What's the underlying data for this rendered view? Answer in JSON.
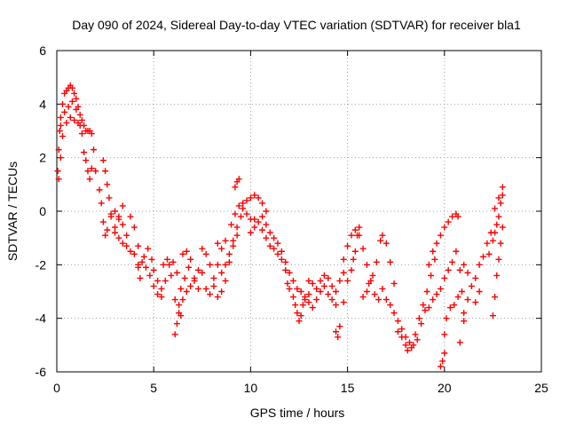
{
  "chart_data": {
    "type": "scatter",
    "title": "Day 090 of 2024, Sidereal Day-to-day VTEC variation (SDTVAR) for receiver bla1",
    "xlabel": "GPS time / hours",
    "ylabel": "SDTVAR / TECUs",
    "xlim": [
      0,
      25
    ],
    "ylim": [
      -6,
      6
    ],
    "xticks": [
      0,
      5,
      10,
      15,
      20,
      25
    ],
    "yticks": [
      -6,
      -4,
      -2,
      0,
      2,
      4,
      6
    ],
    "xtick_labels": [
      "0",
      "5",
      "10",
      "15",
      "20",
      "25"
    ],
    "ytick_labels": [
      "-6",
      "-4",
      "-2",
      "0",
      "2",
      "4",
      "6"
    ],
    "grid": true,
    "marker": "+",
    "series": [
      {
        "name": "bla1 SDTVAR",
        "color": "#ff0000",
        "points": [
          [
            0.05,
            1.5
          ],
          [
            0.1,
            2.3
          ],
          [
            0.15,
            3.0
          ],
          [
            0.2,
            3.5
          ],
          [
            0.3,
            4.0
          ],
          [
            0.4,
            4.4
          ],
          [
            0.5,
            4.5
          ],
          [
            0.6,
            4.6
          ],
          [
            0.7,
            4.7
          ],
          [
            0.8,
            4.6
          ],
          [
            0.9,
            4.4
          ],
          [
            1.0,
            4.2
          ],
          [
            1.1,
            3.9
          ],
          [
            1.2,
            3.6
          ],
          [
            1.3,
            3.4
          ],
          [
            1.4,
            3.2
          ],
          [
            1.5,
            3.0
          ],
          [
            1.6,
            3.0
          ],
          [
            1.7,
            3.0
          ],
          [
            1.8,
            2.9
          ],
          [
            0.1,
            1.2
          ],
          [
            0.2,
            2.0
          ],
          [
            0.3,
            2.8
          ],
          [
            0.5,
            3.3
          ],
          [
            0.7,
            3.5
          ],
          [
            0.9,
            3.4
          ],
          [
            1.1,
            3.3
          ],
          [
            1.3,
            2.9
          ],
          [
            1.5,
            1.9
          ],
          [
            1.7,
            1.2
          ],
          [
            0.2,
            3.2
          ],
          [
            0.4,
            3.7
          ],
          [
            0.6,
            3.9
          ],
          [
            0.8,
            4.1
          ],
          [
            1.0,
            3.8
          ],
          [
            1.2,
            3.2
          ],
          [
            1.4,
            2.2
          ],
          [
            1.6,
            1.5
          ],
          [
            1.8,
            1.6
          ],
          [
            1.9,
            2.3
          ],
          [
            2.0,
            1.5
          ],
          [
            2.2,
            0.8
          ],
          [
            2.3,
            0.3
          ],
          [
            2.4,
            -0.4
          ],
          [
            2.5,
            -0.9
          ],
          [
            2.6,
            -0.7
          ],
          [
            2.8,
            -0.2
          ],
          [
            3.0,
            0.0
          ],
          [
            3.2,
            -0.2
          ],
          [
            3.4,
            0.2
          ],
          [
            2.4,
            1.9
          ],
          [
            2.5,
            1.5
          ],
          [
            2.6,
            1.0
          ],
          [
            2.7,
            0.5
          ],
          [
            2.8,
            -0.1
          ],
          [
            3.0,
            -0.6
          ],
          [
            3.2,
            -1.0
          ],
          [
            3.4,
            -1.2
          ],
          [
            3.6,
            -1.3
          ],
          [
            3.8,
            -1.5
          ],
          [
            4.0,
            -1.6
          ],
          [
            4.2,
            -2.0
          ],
          [
            4.3,
            -2.5
          ],
          [
            4.2,
            -2.1
          ],
          [
            4.5,
            -1.7
          ],
          [
            4.7,
            -1.4
          ],
          [
            4.9,
            -1.8
          ],
          [
            5.0,
            -2.2
          ],
          [
            5.2,
            -2.6
          ],
          [
            5.4,
            -2.9
          ],
          [
            3.0,
            -0.8
          ],
          [
            3.2,
            -0.3
          ],
          [
            3.4,
            -0.5
          ],
          [
            3.6,
            -0.9
          ],
          [
            3.8,
            -0.2
          ],
          [
            4.0,
            -0.6
          ],
          [
            4.2,
            -1.3
          ],
          [
            4.4,
            -1.9
          ],
          [
            4.6,
            -2.1
          ],
          [
            4.8,
            -2.4
          ],
          [
            5.0,
            -2.8
          ],
          [
            5.2,
            -3.1
          ],
          [
            5.4,
            -3.2
          ],
          [
            5.6,
            -2.6
          ],
          [
            5.8,
            -2.0
          ],
          [
            6.0,
            -1.9
          ],
          [
            6.2,
            -2.3
          ],
          [
            6.4,
            -2.9
          ],
          [
            6.6,
            -2.5
          ],
          [
            6.8,
            -2.1
          ],
          [
            5.5,
            -2.0
          ],
          [
            5.7,
            -1.8
          ],
          [
            5.9,
            -2.4
          ],
          [
            6.1,
            -3.3
          ],
          [
            6.3,
            -3.5
          ],
          [
            6.5,
            -3.3
          ],
          [
            6.7,
            -3.0
          ],
          [
            6.9,
            -2.8
          ],
          [
            7.1,
            -2.5
          ],
          [
            7.3,
            -2.2
          ],
          [
            6.1,
            -4.6
          ],
          [
            6.2,
            -4.2
          ],
          [
            6.3,
            -3.8
          ],
          [
            6.4,
            -3.9
          ],
          [
            6.5,
            -1.6
          ],
          [
            6.7,
            -1.5
          ],
          [
            6.9,
            -1.8
          ],
          [
            7.1,
            -2.6
          ],
          [
            7.3,
            -2.9
          ],
          [
            7.5,
            -2.3
          ],
          [
            7.5,
            -1.4
          ],
          [
            7.7,
            -1.6
          ],
          [
            7.9,
            -2.0
          ],
          [
            8.1,
            -2.8
          ],
          [
            8.3,
            -3.2
          ],
          [
            8.5,
            -3.0
          ],
          [
            8.7,
            -2.6
          ],
          [
            8.9,
            -1.9
          ],
          [
            9.1,
            -1.3
          ],
          [
            9.3,
            -0.9
          ],
          [
            7.7,
            -2.9
          ],
          [
            7.9,
            -3.1
          ],
          [
            8.1,
            -2.5
          ],
          [
            8.3,
            -2.0
          ],
          [
            8.5,
            -2.3
          ],
          [
            8.7,
            -2.0
          ],
          [
            8.9,
            -1.6
          ],
          [
            9.1,
            -1.1
          ],
          [
            9.3,
            -0.6
          ],
          [
            9.5,
            -0.2
          ],
          [
            8.3,
            -1.2
          ],
          [
            8.5,
            -1.4
          ],
          [
            8.7,
            -1.1
          ],
          [
            9.0,
            -0.5
          ],
          [
            9.2,
            -0.1
          ],
          [
            9.4,
            0.2
          ],
          [
            9.6,
            0.1
          ],
          [
            9.8,
            -0.1
          ],
          [
            10.0,
            -0.3
          ],
          [
            10.2,
            -0.3
          ],
          [
            9.2,
            0.9
          ],
          [
            9.3,
            1.1
          ],
          [
            9.4,
            1.2
          ],
          [
            9.6,
            0.3
          ],
          [
            9.8,
            0.4
          ],
          [
            10.0,
            0.5
          ],
          [
            10.2,
            0.6
          ],
          [
            10.4,
            0.5
          ],
          [
            10.6,
            0.3
          ],
          [
            10.8,
            0.0
          ],
          [
            10.0,
            -0.8
          ],
          [
            10.2,
            -0.6
          ],
          [
            10.4,
            -0.4
          ],
          [
            10.6,
            -0.7
          ],
          [
            10.8,
            -1.0
          ],
          [
            11.0,
            -1.3
          ],
          [
            11.2,
            -1.4
          ],
          [
            11.4,
            -1.6
          ],
          [
            11.6,
            -1.8
          ],
          [
            11.8,
            -2.2
          ],
          [
            10.6,
            -0.2
          ],
          [
            10.8,
            -0.5
          ],
          [
            11.0,
            -0.8
          ],
          [
            11.2,
            -1.0
          ],
          [
            11.4,
            -1.2
          ],
          [
            11.6,
            -1.5
          ],
          [
            11.8,
            -1.9
          ],
          [
            12.0,
            -2.3
          ],
          [
            12.2,
            -2.6
          ],
          [
            12.4,
            -2.9
          ],
          [
            11.9,
            -2.7
          ],
          [
            12.0,
            -2.9
          ],
          [
            12.2,
            -3.2
          ],
          [
            12.3,
            -3.5
          ],
          [
            12.4,
            -3.8
          ],
          [
            12.5,
            -4.1
          ],
          [
            12.6,
            -3.9
          ],
          [
            12.7,
            -3.5
          ],
          [
            12.8,
            -3.3
          ],
          [
            13.0,
            -3.1
          ],
          [
            12.6,
            -3.0
          ],
          [
            12.8,
            -3.2
          ],
          [
            13.0,
            -3.4
          ],
          [
            13.2,
            -3.6
          ],
          [
            13.4,
            -3.3
          ],
          [
            13.6,
            -3.0
          ],
          [
            13.8,
            -2.8
          ],
          [
            14.0,
            -3.1
          ],
          [
            14.2,
            -3.3
          ],
          [
            14.4,
            -3.5
          ],
          [
            13.0,
            -2.6
          ],
          [
            13.2,
            -2.7
          ],
          [
            13.4,
            -2.9
          ],
          [
            13.6,
            -2.6
          ],
          [
            13.8,
            -2.4
          ],
          [
            14.0,
            -2.5
          ],
          [
            14.2,
            -2.8
          ],
          [
            14.4,
            -3.0
          ],
          [
            14.6,
            -2.6
          ],
          [
            14.8,
            -2.3
          ],
          [
            14.4,
            -4.5
          ],
          [
            14.5,
            -4.7
          ],
          [
            14.6,
            -4.3
          ],
          [
            14.8,
            -3.4
          ],
          [
            15.0,
            -2.6
          ],
          [
            15.2,
            -2.2
          ],
          [
            15.3,
            -1.8
          ],
          [
            15.4,
            -1.5
          ],
          [
            15.5,
            -0.9
          ],
          [
            15.6,
            -0.6
          ],
          [
            14.8,
            -1.8
          ],
          [
            15.0,
            -1.3
          ],
          [
            15.2,
            -0.9
          ],
          [
            15.4,
            -0.7
          ],
          [
            15.6,
            -0.9
          ],
          [
            15.8,
            -1.4
          ],
          [
            16.0,
            -2.0
          ],
          [
            16.2,
            -2.6
          ],
          [
            16.4,
            -3.1
          ],
          [
            16.6,
            -3.3
          ],
          [
            15.8,
            -3.2
          ],
          [
            16.0,
            -3.0
          ],
          [
            16.1,
            -2.7
          ],
          [
            16.3,
            -2.4
          ],
          [
            16.5,
            -1.9
          ],
          [
            16.7,
            -1.1
          ],
          [
            16.8,
            -0.9
          ],
          [
            17.0,
            -1.2
          ],
          [
            17.2,
            -1.9
          ],
          [
            17.4,
            -2.7
          ],
          [
            16.8,
            -2.9
          ],
          [
            17.0,
            -3.3
          ],
          [
            17.2,
            -3.5
          ],
          [
            17.4,
            -3.8
          ],
          [
            17.6,
            -4.1
          ],
          [
            17.8,
            -4.4
          ],
          [
            18.0,
            -4.7
          ],
          [
            18.2,
            -4.9
          ],
          [
            18.4,
            -5.0
          ],
          [
            18.6,
            -4.8
          ],
          [
            17.6,
            -4.5
          ],
          [
            17.8,
            -4.7
          ],
          [
            18.0,
            -5.0
          ],
          [
            18.1,
            -5.2
          ],
          [
            18.3,
            -5.1
          ],
          [
            18.5,
            -4.6
          ],
          [
            18.7,
            -4.0
          ],
          [
            18.9,
            -3.5
          ],
          [
            19.1,
            -3.0
          ],
          [
            19.3,
            -2.4
          ],
          [
            18.8,
            -4.2
          ],
          [
            19.0,
            -3.7
          ],
          [
            19.2,
            -3.6
          ],
          [
            19.4,
            -3.3
          ],
          [
            19.6,
            -3.1
          ],
          [
            19.8,
            -2.9
          ],
          [
            20.0,
            -2.5
          ],
          [
            20.2,
            -2.2
          ],
          [
            20.4,
            -1.9
          ],
          [
            20.6,
            -1.5
          ],
          [
            19.2,
            -2.0
          ],
          [
            19.4,
            -1.5
          ],
          [
            19.6,
            -1.2
          ],
          [
            19.8,
            -0.9
          ],
          [
            20.0,
            -0.6
          ],
          [
            20.2,
            -0.4
          ],
          [
            20.4,
            -0.2
          ],
          [
            20.6,
            -0.1
          ],
          [
            20.7,
            -0.2
          ],
          [
            19.5,
            -1.8
          ],
          [
            19.8,
            -5.8
          ],
          [
            19.9,
            -5.6
          ],
          [
            20.0,
            -5.3
          ],
          [
            20.0,
            -4.6
          ],
          [
            20.1,
            -4.0
          ],
          [
            20.3,
            -3.6
          ],
          [
            20.5,
            -3.5
          ],
          [
            20.7,
            -3.2
          ],
          [
            20.9,
            -3.0
          ],
          [
            20.8,
            -4.9
          ],
          [
            20.8,
            -2.2
          ],
          [
            21.0,
            -2.0
          ],
          [
            21.2,
            -2.3
          ],
          [
            21.4,
            -2.8
          ],
          [
            21.6,
            -3.4
          ],
          [
            21.8,
            -3.0
          ],
          [
            21.0,
            -3.8
          ],
          [
            21.0,
            -4.1
          ],
          [
            21.2,
            -3.3
          ],
          [
            21.6,
            -2.5
          ],
          [
            21.8,
            -2.0
          ],
          [
            22.0,
            -1.7
          ],
          [
            22.2,
            -1.2
          ],
          [
            22.4,
            -0.8
          ],
          [
            22.5,
            -3.9
          ],
          [
            22.6,
            -3.2
          ],
          [
            22.7,
            -2.4
          ],
          [
            22.8,
            -1.8
          ],
          [
            22.9,
            -1.2
          ],
          [
            23.0,
            -0.6
          ],
          [
            22.3,
            -1.6
          ],
          [
            22.5,
            -1.1
          ],
          [
            22.7,
            -0.5
          ],
          [
            22.8,
            -0.2
          ],
          [
            22.9,
            0.3
          ],
          [
            23.0,
            0.9
          ],
          [
            22.8,
            0.5
          ],
          [
            22.6,
            0.1
          ],
          [
            23.0,
            0.6
          ],
          [
            22.6,
            -0.8
          ]
        ]
      }
    ]
  }
}
